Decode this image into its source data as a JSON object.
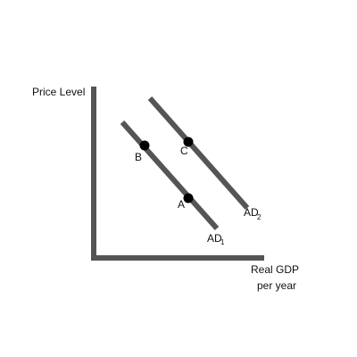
{
  "labels": {
    "y_axis": "Price Level",
    "x_axis_line1": "Real GDP",
    "x_axis_line2": "per year"
  },
  "curves": {
    "ad1": {
      "main": "AD",
      "sub": "1"
    },
    "ad2": {
      "main": "AD",
      "sub": "2"
    }
  },
  "points": {
    "a": "A",
    "b": "B",
    "c": "C"
  },
  "colors": {
    "line": "#555555",
    "point": "#000000",
    "text": "#111111"
  }
}
